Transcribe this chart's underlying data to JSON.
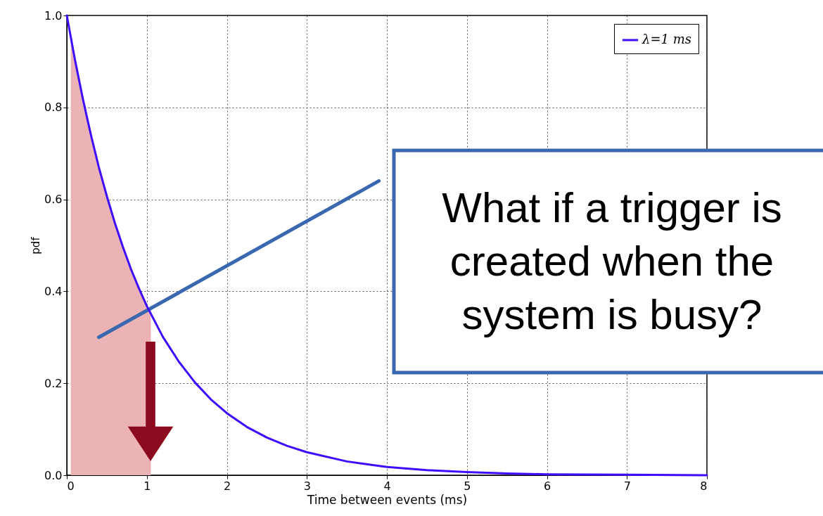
{
  "chart_data": {
    "type": "line",
    "xlabel": "Time between events (ms)",
    "ylabel": "pdf",
    "xlim": [
      0,
      8
    ],
    "ylim": [
      0,
      1
    ],
    "xticks": [
      0,
      1,
      2,
      3,
      4,
      5,
      6,
      7,
      8
    ],
    "yticks": [
      {
        "value": 0,
        "label": "0.0"
      },
      0.2,
      0.4,
      0.6,
      0.8,
      {
        "value": 1,
        "label": "1.0"
      }
    ],
    "grid": true,
    "legend": "top right",
    "series": [
      {
        "type": "area",
        "color": "#ebb3b5",
        "x": [
          0.05,
          0.2,
          0.4,
          0.6,
          0.8,
          1.05
        ],
        "values": [
          0.951,
          0.819,
          0.67,
          0.549,
          0.449,
          0.35
        ]
      },
      {
        "type": "line",
        "color": "#3a68b0",
        "x": [
          0.4,
          3.9
        ],
        "values": [
          0.3,
          0.64
        ]
      },
      {
        "name": "λ=1 ms",
        "color": "#3f0dff",
        "x": [
          0,
          0.1,
          0.2,
          0.3,
          0.4,
          0.5,
          0.6,
          0.7,
          0.8,
          0.9,
          1.0,
          1.2,
          1.4,
          1.6,
          1.8,
          2.0,
          2.25,
          2.5,
          2.75,
          3.0,
          3.5,
          4.0,
          4.5,
          5.0,
          5.5,
          6.0,
          7.0,
          8.0
        ],
        "values": [
          1.0,
          0.905,
          0.819,
          0.741,
          0.67,
          0.607,
          0.549,
          0.497,
          0.449,
          0.407,
          0.368,
          0.301,
          0.247,
          0.202,
          0.165,
          0.135,
          0.105,
          0.082,
          0.064,
          0.05,
          0.03,
          0.018,
          0.011,
          0.007,
          0.004,
          0.002,
          0.001,
          0.0
        ]
      }
    ],
    "annotations": [
      "What if a trigger is\ncreated when the\nsystem is busy?"
    ]
  }
}
